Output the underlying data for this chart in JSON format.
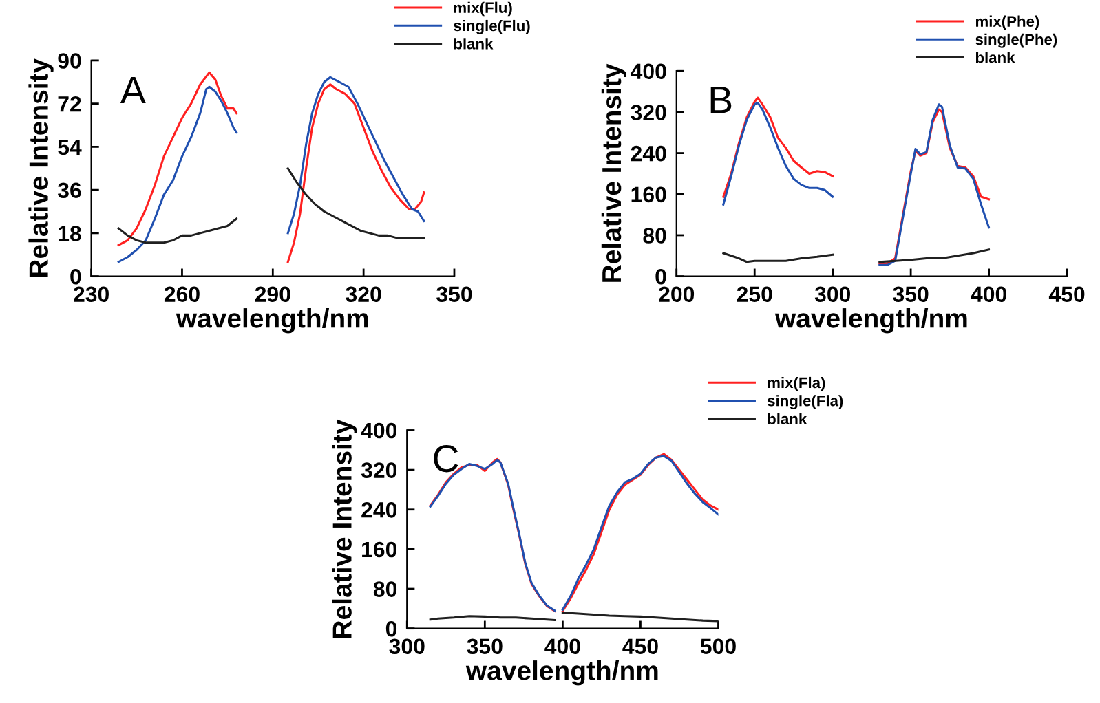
{
  "chart_data": [
    {
      "type": "line",
      "xlabel": "wavelength/nm",
      "ylabel": "Relative Intensity",
      "annotations": [
        "A"
      ],
      "xlim": [
        230,
        350
      ],
      "xticks": [
        230,
        260,
        290,
        320,
        350
      ],
      "ylim": [
        0,
        90
      ],
      "yticks": [
        0,
        18,
        36,
        54,
        72,
        90
      ],
      "legend": "top right",
      "grid": false,
      "series": [
        {
          "name": "mix(Flu)",
          "color": "#ff2020",
          "x": [
            239,
            242,
            245,
            248,
            251,
            254,
            257,
            260,
            263,
            266,
            269,
            271,
            273,
            275,
            277,
            278,
            286,
            295,
            297,
            299,
            301,
            303,
            305,
            307,
            309,
            311,
            314,
            317,
            320,
            323,
            326,
            329,
            332,
            335,
            337,
            339,
            340
          ],
          "values": [
            13,
            15,
            20,
            28,
            38,
            50,
            58,
            66,
            72,
            80,
            85,
            82,
            75,
            70,
            70,
            68,
            null,
            6,
            14,
            26,
            45,
            62,
            72,
            78,
            80,
            78,
            76,
            72,
            62,
            52,
            44,
            37,
            32,
            28,
            28,
            31,
            35
          ]
        },
        {
          "name": "single(Flu)",
          "color": "#2050b0",
          "x": [
            239,
            242,
            245,
            248,
            251,
            254,
            257,
            260,
            263,
            266,
            268,
            269,
            271,
            273,
            275,
            277,
            278,
            286,
            295,
            297,
            299,
            301,
            303,
            305,
            307,
            309,
            312,
            315,
            318,
            321,
            324,
            327,
            330,
            333,
            336,
            338,
            340
          ],
          "values": [
            6,
            8,
            11,
            15,
            24,
            34,
            40,
            50,
            58,
            68,
            78,
            79,
            77,
            73,
            68,
            62,
            60,
            null,
            18,
            26,
            38,
            55,
            68,
            76,
            81,
            83,
            81,
            79,
            72,
            64,
            56,
            48,
            41,
            34,
            28,
            27,
            23
          ]
        },
        {
          "name": "blank",
          "color": "#202020",
          "x": [
            239,
            242,
            245,
            248,
            251,
            254,
            257,
            260,
            263,
            266,
            269,
            272,
            275,
            278,
            286,
            295,
            298,
            301,
            304,
            307,
            310,
            313,
            316,
            319,
            322,
            325,
            328,
            331,
            334,
            337,
            340
          ],
          "values": [
            20,
            17,
            15,
            14,
            14,
            14,
            15,
            17,
            17,
            18,
            19,
            20,
            21,
            24,
            null,
            45,
            39,
            34,
            30,
            27,
            25,
            23,
            21,
            19,
            18,
            17,
            17,
            16,
            16,
            16,
            16
          ]
        }
      ]
    },
    {
      "type": "line",
      "xlabel": "wavelength/nm",
      "ylabel": "Relative Intensity",
      "annotations": [
        "B"
      ],
      "xlim": [
        200,
        450
      ],
      "xticks": [
        200,
        250,
        300,
        350,
        400,
        450
      ],
      "ylim": [
        0,
        400
      ],
      "yticks": [
        0,
        80,
        160,
        240,
        320,
        400
      ],
      "legend": "top right",
      "grid": false,
      "series": [
        {
          "name": "mix(Phe)",
          "color": "#ff2020",
          "x": [
            230,
            235,
            240,
            245,
            250,
            252,
            255,
            260,
            265,
            270,
            275,
            280,
            285,
            290,
            295,
            300,
            315,
            330,
            335,
            340,
            345,
            350,
            353,
            356,
            360,
            364,
            368,
            370,
            375,
            380,
            385,
            390,
            395,
            400
          ],
          "values": [
            155,
            200,
            260,
            310,
            340,
            348,
            335,
            310,
            270,
            250,
            225,
            212,
            200,
            205,
            203,
            195,
            null,
            25,
            25,
            35,
            120,
            205,
            245,
            235,
            240,
            300,
            325,
            320,
            250,
            215,
            212,
            195,
            155,
            150
          ]
        },
        {
          "name": "single(Phe)",
          "color": "#2050b0",
          "x": [
            230,
            235,
            240,
            245,
            250,
            252,
            255,
            260,
            265,
            270,
            275,
            280,
            285,
            290,
            295,
            300,
            315,
            330,
            335,
            340,
            345,
            350,
            353,
            356,
            360,
            364,
            368,
            370,
            375,
            380,
            385,
            390,
            395,
            400
          ],
          "values": [
            140,
            195,
            255,
            305,
            335,
            338,
            325,
            290,
            250,
            215,
            190,
            178,
            172,
            172,
            168,
            155,
            null,
            22,
            22,
            30,
            115,
            200,
            248,
            238,
            242,
            305,
            335,
            330,
            255,
            212,
            210,
            190,
            140,
            95
          ]
        },
        {
          "name": "blank",
          "color": "#202020",
          "x": [
            230,
            240,
            245,
            250,
            260,
            270,
            280,
            290,
            300,
            315,
            330,
            340,
            350,
            360,
            370,
            380,
            390,
            400
          ],
          "values": [
            45,
            35,
            28,
            30,
            30,
            30,
            35,
            38,
            42,
            null,
            28,
            30,
            32,
            35,
            35,
            40,
            45,
            52
          ]
        }
      ]
    },
    {
      "type": "line",
      "xlabel": "wavelength/nm",
      "ylabel": "Relative Intensity",
      "annotations": [
        "C"
      ],
      "xlim": [
        300,
        500
      ],
      "xticks": [
        300,
        350,
        400,
        450,
        500
      ],
      "ylim": [
        0,
        400
      ],
      "yticks": [
        0,
        80,
        160,
        240,
        320,
        400
      ],
      "legend": "top right",
      "grid": false,
      "series": [
        {
          "name": "mix(Fla)",
          "color": "#ff2020",
          "x": [
            315,
            320,
            325,
            330,
            335,
            340,
            345,
            350,
            355,
            358,
            360,
            365,
            368,
            372,
            376,
            380,
            385,
            390,
            395,
            398,
            400,
            405,
            410,
            415,
            420,
            425,
            430,
            435,
            440,
            445,
            450,
            455,
            460,
            465,
            470,
            475,
            480,
            485,
            490,
            495,
            500
          ],
          "values": [
            248,
            270,
            295,
            312,
            325,
            330,
            330,
            318,
            335,
            342,
            335,
            290,
            245,
            190,
            130,
            90,
            65,
            45,
            35,
            null,
            35,
            60,
            90,
            118,
            150,
            195,
            240,
            270,
            290,
            300,
            310,
            330,
            345,
            352,
            340,
            320,
            300,
            280,
            260,
            248,
            240
          ]
        },
        {
          "name": "single(Fla)",
          "color": "#2050b0",
          "x": [
            315,
            320,
            325,
            330,
            335,
            340,
            345,
            350,
            355,
            358,
            360,
            365,
            368,
            372,
            376,
            380,
            385,
            390,
            395,
            398,
            400,
            405,
            410,
            415,
            420,
            425,
            430,
            435,
            440,
            445,
            450,
            455,
            460,
            465,
            470,
            475,
            480,
            485,
            490,
            495,
            500
          ],
          "values": [
            246,
            268,
            292,
            310,
            322,
            332,
            328,
            322,
            332,
            340,
            335,
            292,
            248,
            192,
            132,
            92,
            66,
            46,
            36,
            null,
            38,
            65,
            100,
            128,
            160,
            205,
            248,
            275,
            295,
            302,
            312,
            332,
            345,
            348,
            338,
            315,
            292,
            272,
            255,
            243,
            230
          ]
        },
        {
          "name": "blank",
          "color": "#202020",
          "x": [
            315,
            320,
            330,
            340,
            350,
            360,
            370,
            380,
            390,
            395,
            398,
            400,
            410,
            420,
            430,
            440,
            450,
            460,
            470,
            480,
            490,
            500
          ],
          "values": [
            18,
            20,
            22,
            25,
            24,
            22,
            22,
            20,
            18,
            17,
            null,
            32,
            30,
            28,
            26,
            25,
            24,
            22,
            20,
            18,
            16,
            15
          ]
        }
      ]
    }
  ]
}
